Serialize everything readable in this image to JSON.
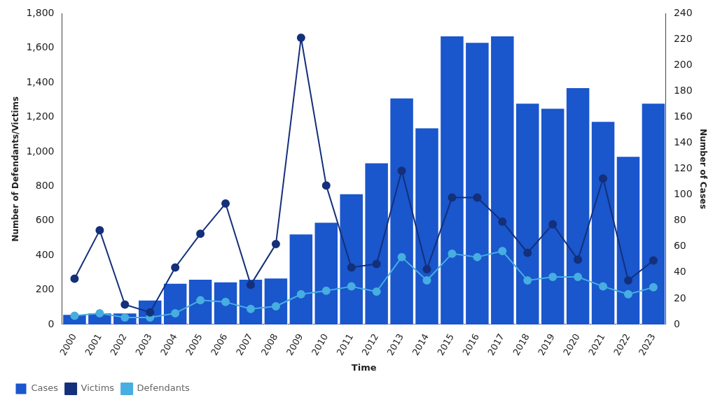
{
  "chart_data": {
    "type": "bar",
    "xlabel": "Time",
    "ylabel": "Number of Defendants/Victims",
    "y2label": "Number of Cases",
    "categories": [
      "2000",
      "2001",
      "2002",
      "2003",
      "2004",
      "2005",
      "2006",
      "2007",
      "2008",
      "2009",
      "2010",
      "2011",
      "2012",
      "2013",
      "2014",
      "2015",
      "2016",
      "2017",
      "2018",
      "2019",
      "2020",
      "2021",
      "2022",
      "2023"
    ],
    "series": [
      {
        "name": "Cases",
        "axis": "y2",
        "color": "#1a56cc",
        "values": [
          8,
          9,
          9,
          19,
          32,
          35,
          33,
          35,
          36,
          70,
          79,
          101,
          125,
          175,
          152,
          223,
          218,
          223,
          171,
          167,
          183,
          157,
          130,
          171
        ]
      },
      {
        "name": "Victims",
        "type": "line",
        "color": "#14307a",
        "values": [
          265,
          545,
          115,
          70,
          330,
          525,
          700,
          230,
          465,
          1660,
          805,
          330,
          350,
          890,
          320,
          735,
          735,
          595,
          415,
          580,
          375,
          845,
          255,
          370
        ]
      },
      {
        "name": "Defendants",
        "type": "line",
        "color": "#46aee0",
        "values": [
          50,
          65,
          40,
          40,
          65,
          140,
          130,
          90,
          105,
          175,
          195,
          220,
          190,
          390,
          255,
          410,
          390,
          425,
          255,
          275,
          275,
          220,
          175,
          215
        ]
      }
    ],
    "ylim": [
      0,
      1800
    ],
    "yticks": [
      0,
      200,
      400,
      600,
      800,
      {
        "value": 1000,
        "label": "1,000"
      },
      {
        "value": 1200,
        "label": "1,200"
      },
      {
        "value": 1400,
        "label": "1,400"
      },
      {
        "value": 1600,
        "label": "1,600"
      },
      {
        "value": 1800,
        "label": "1,800"
      }
    ],
    "y2lim": [
      0,
      240
    ],
    "y2ticks": [
      0,
      20,
      40,
      60,
      80,
      100,
      120,
      140,
      160,
      180,
      200,
      220,
      240
    ],
    "grid": false,
    "legend": "bottom left",
    "marker": "circle",
    "line_style": "solid"
  }
}
